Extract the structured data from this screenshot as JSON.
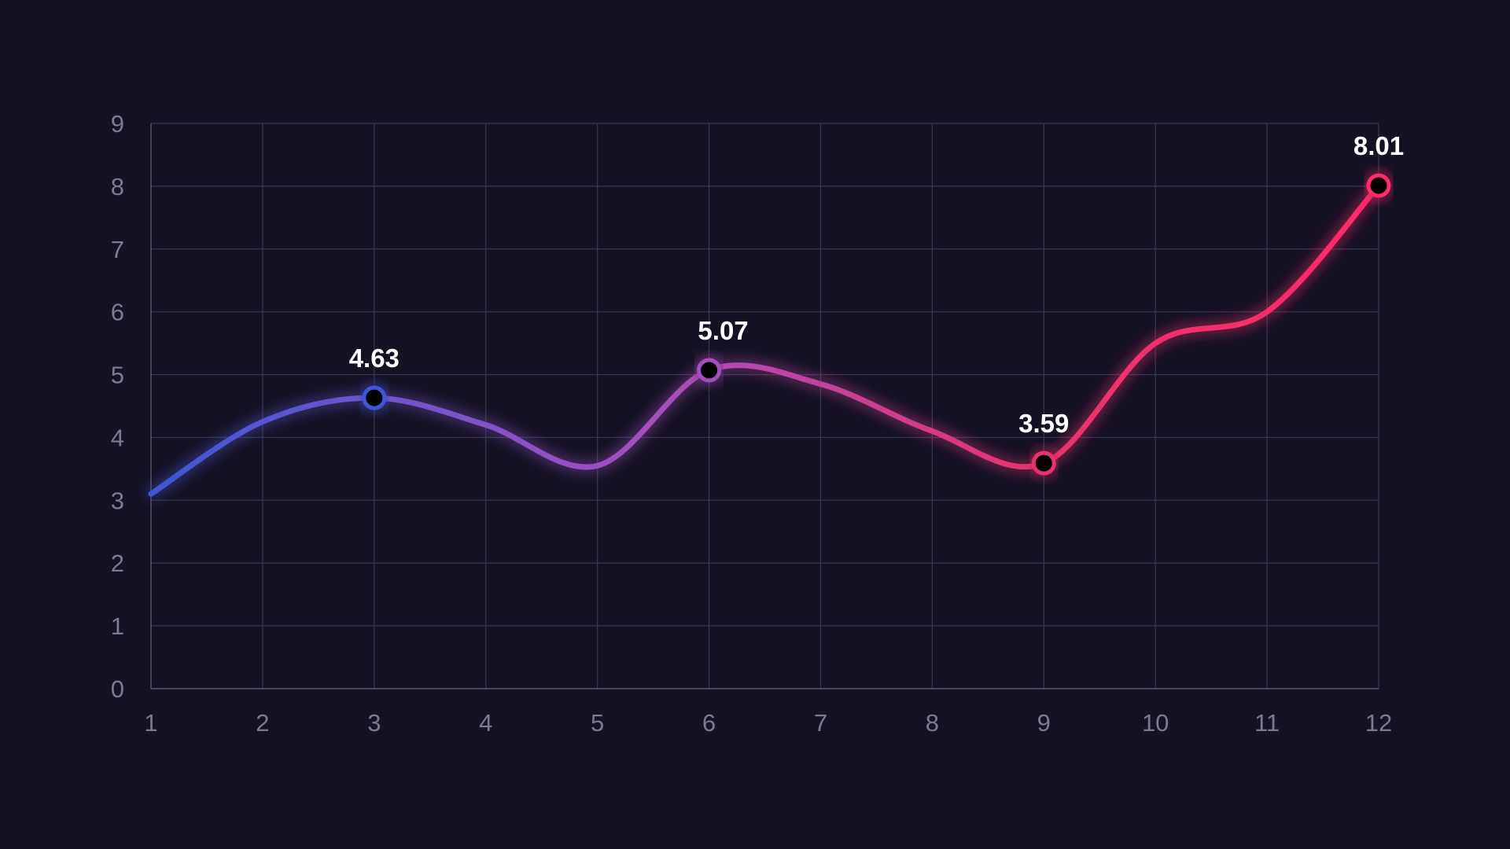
{
  "chart_data": {
    "type": "line",
    "x": [
      1,
      2,
      3,
      4,
      5,
      6,
      7,
      8,
      9,
      10,
      11,
      12
    ],
    "series": [
      {
        "values": [
          3.1,
          4.25,
          4.63,
          4.2,
          3.55,
          5.07,
          4.85,
          4.1,
          3.59,
          5.5,
          6.0,
          8.01
        ]
      }
    ],
    "highlighted_points": [
      {
        "x": 3,
        "y": 4.63,
        "label": "4.63"
      },
      {
        "x": 6,
        "y": 5.07,
        "label": "5.07"
      },
      {
        "x": 9,
        "y": 3.59,
        "label": "3.59"
      },
      {
        "x": 12,
        "y": 8.01,
        "label": "8.01"
      }
    ],
    "x_ticks": [
      "1",
      "2",
      "3",
      "4",
      "5",
      "6",
      "7",
      "8",
      "9",
      "10",
      "11",
      "12"
    ],
    "y_ticks": [
      "0",
      "1",
      "2",
      "3",
      "4",
      "5",
      "6",
      "7",
      "8",
      "9"
    ],
    "xlim": [
      1,
      12
    ],
    "ylim": [
      0,
      9
    ],
    "grid": true,
    "line_gradient": [
      "#3f57d6",
      "#a34fc0",
      "#e8326d",
      "#ff2a6a"
    ],
    "background_color": "#151224",
    "marker_fill": "#000000"
  }
}
